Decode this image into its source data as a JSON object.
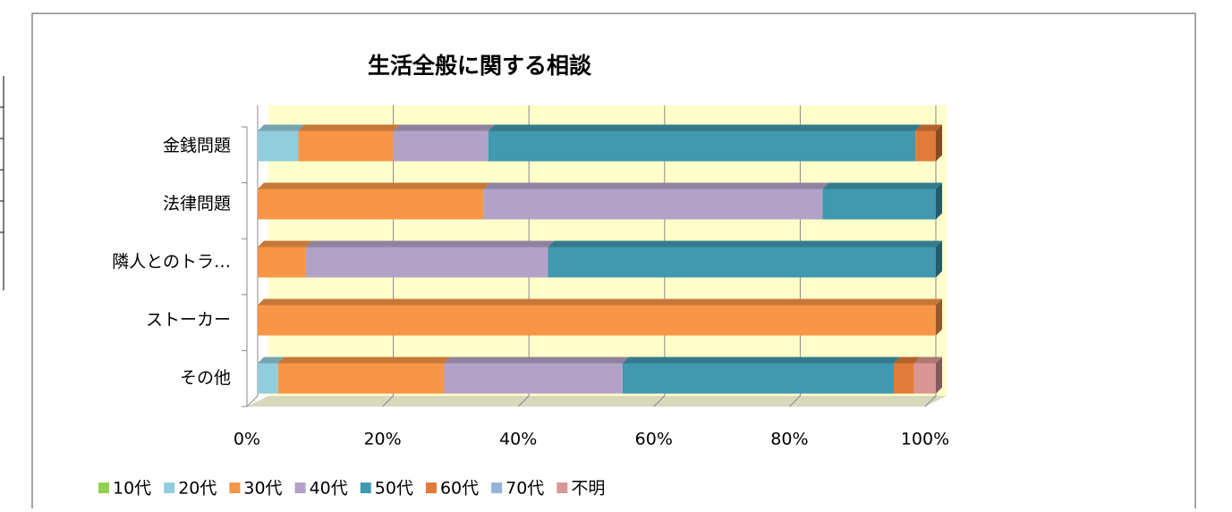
{
  "chart_data": {
    "type": "bar",
    "orientation": "horizontal",
    "stacked": true,
    "title": "生活全般に関する相談",
    "categories": [
      "金銭問題",
      "法律問題",
      "隣人とのトラ…",
      "ストーカー",
      "その他"
    ],
    "series": [
      {
        "name": "10代",
        "color": "#92d050",
        "values": [
          0,
          0,
          0,
          0,
          0
        ]
      },
      {
        "name": "20代",
        "color": "#92cddc",
        "values": [
          6,
          0,
          0,
          0,
          3
        ]
      },
      {
        "name": "30代",
        "color": "#f79646",
        "values": [
          14,
          33.3,
          7.1,
          100,
          24.5
        ]
      },
      {
        "name": "40代",
        "color": "#b3a2c7",
        "values": [
          14,
          50,
          35.7,
          0,
          26.3
        ]
      },
      {
        "name": "50代",
        "color": "#4198af",
        "values": [
          63,
          16.7,
          57.2,
          0,
          40
        ]
      },
      {
        "name": "60代",
        "color": "#e07b39",
        "values": [
          3,
          0,
          0,
          0,
          3
        ]
      },
      {
        "name": "70代",
        "color": "#95b3d7",
        "values": [
          0,
          0,
          0,
          0,
          0
        ]
      },
      {
        "name": "不明",
        "color": "#d99694",
        "values": [
          0,
          0,
          0,
          0,
          3.2
        ]
      }
    ],
    "xlim": [
      0,
      100
    ],
    "xticks": [
      {
        "value": 0,
        "label": "0%"
      },
      {
        "value": 20,
        "label": "20%"
      },
      {
        "value": 40,
        "label": "40%"
      },
      {
        "value": 60,
        "label": "60%"
      },
      {
        "value": 80,
        "label": "80%"
      },
      {
        "value": 100,
        "label": "100%"
      }
    ],
    "grid": true,
    "legend": "bottom"
  }
}
